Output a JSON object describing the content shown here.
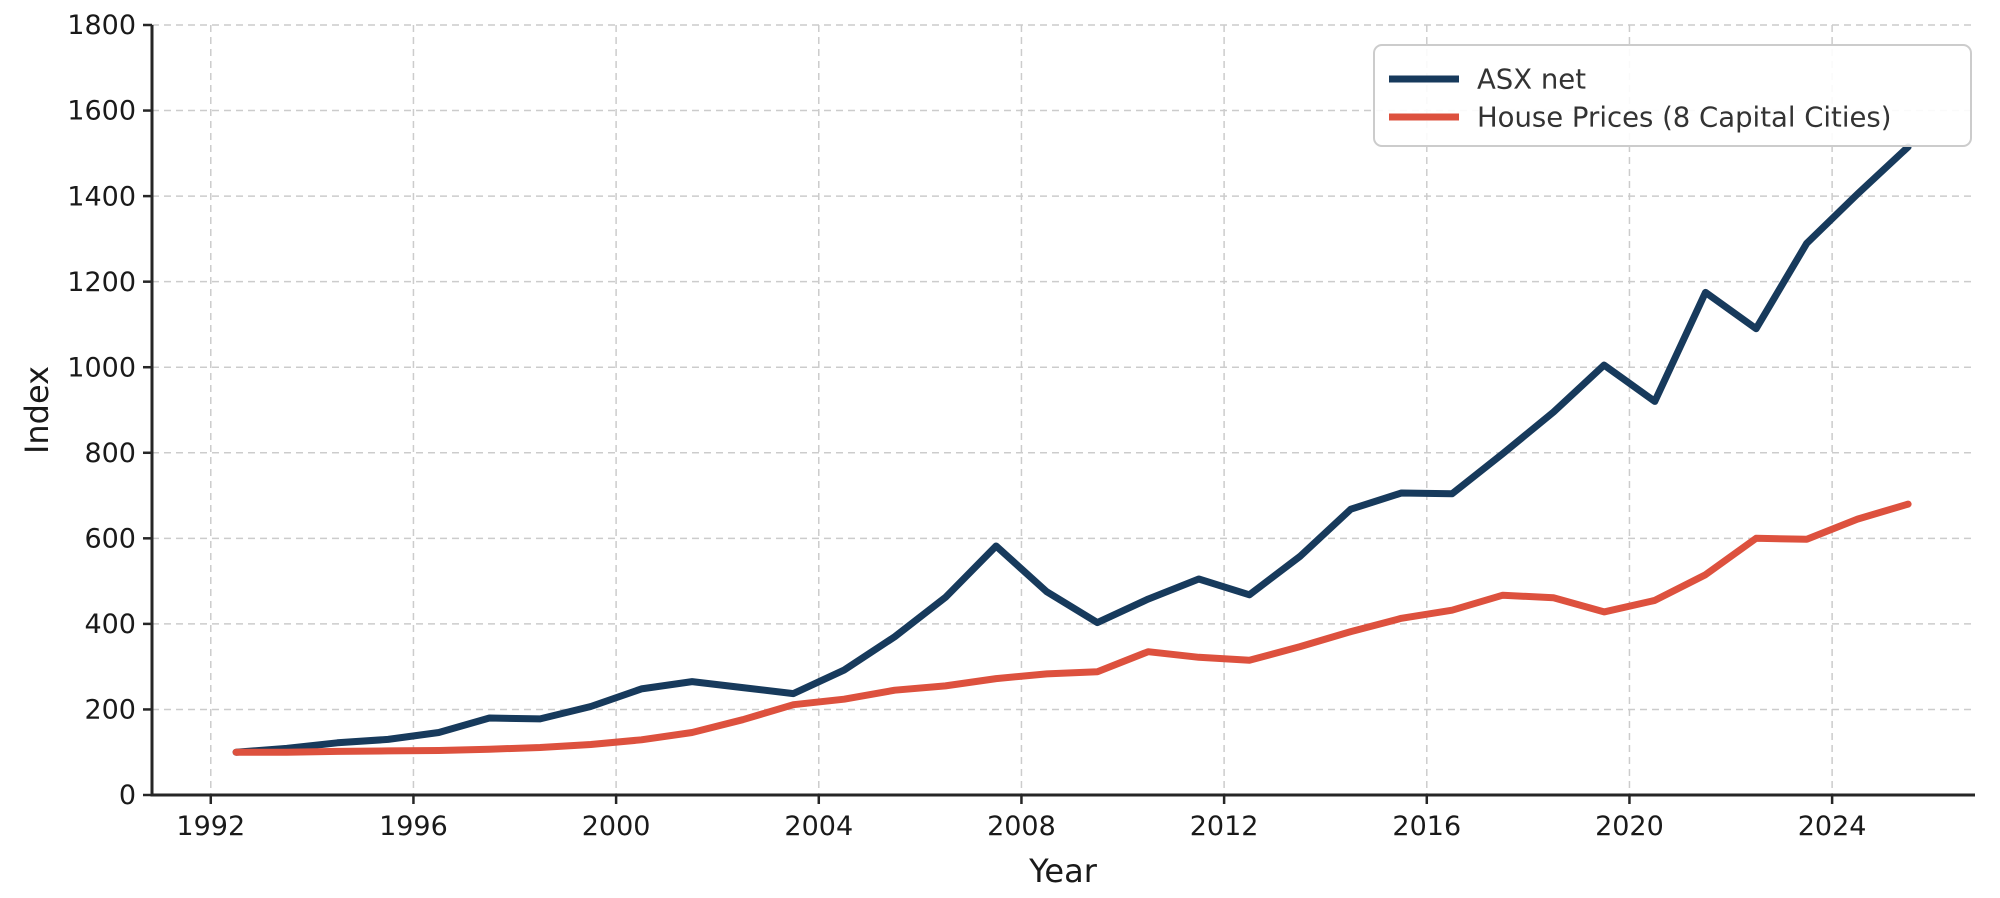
{
  "figure": {
    "background": "#ffffff",
    "grid_color": "#cccccc",
    "spine_color": "#262626",
    "tick_color": "#262626"
  },
  "legend": {
    "position": "upper right",
    "items": [
      {
        "label": "ASX net",
        "color": "#173a5c"
      },
      {
        "label": "House Prices (8 Capital Cities)",
        "color": "#dd513e"
      }
    ]
  },
  "chart_data": {
    "type": "line",
    "title": "",
    "xlabel": "Year",
    "ylabel": "Index",
    "xlim": [
      1990.84,
      2026.82
    ],
    "ylim": [
      0,
      1800
    ],
    "xticks": [
      1992,
      1996,
      2000,
      2004,
      2008,
      2012,
      2016,
      2020,
      2024
    ],
    "yticks": [
      0,
      200,
      400,
      600,
      800,
      1000,
      1200,
      1400,
      1600,
      1800
    ],
    "grid": true,
    "grid_style": "dashed",
    "legend_position": "upper right",
    "x": [
      1992.5,
      1993.5,
      1994.5,
      1995.5,
      1996.5,
      1997.5,
      1998.5,
      1999.5,
      2000.5,
      2001.5,
      2002.5,
      2003.5,
      2004.5,
      2005.5,
      2006.5,
      2007.5,
      2008.5,
      2009.5,
      2010.5,
      2011.5,
      2012.5,
      2013.5,
      2014.5,
      2015.5,
      2016.5,
      2017.5,
      2018.5,
      2019.5,
      2020.5,
      2021.5,
      2022.5,
      2023.5,
      2024.5,
      2025.5
    ],
    "series": [
      {
        "name": "ASX net",
        "color": "#173a5c",
        "values": [
          100,
          109,
          122,
          130,
          146,
          180,
          178,
          207,
          248,
          265,
          251,
          237,
          292,
          370,
          462,
          582,
          475,
          403,
          458,
          505,
          468,
          558,
          668,
          706,
          704,
          798,
          895,
          1005,
          920,
          1175,
          1090,
          1290,
          1405,
          1515
        ]
      },
      {
        "name": "House Prices (8 Capital Cities)",
        "color": "#dd513e",
        "values": [
          100,
          100,
          102,
          103,
          104,
          107,
          111,
          118,
          129,
          146,
          176,
          211,
          224,
          245,
          255,
          272,
          283,
          288,
          335,
          322,
          315,
          347,
          382,
          413,
          432,
          467,
          461,
          428,
          455,
          515,
          600,
          598,
          645,
          680
        ]
      }
    ]
  }
}
